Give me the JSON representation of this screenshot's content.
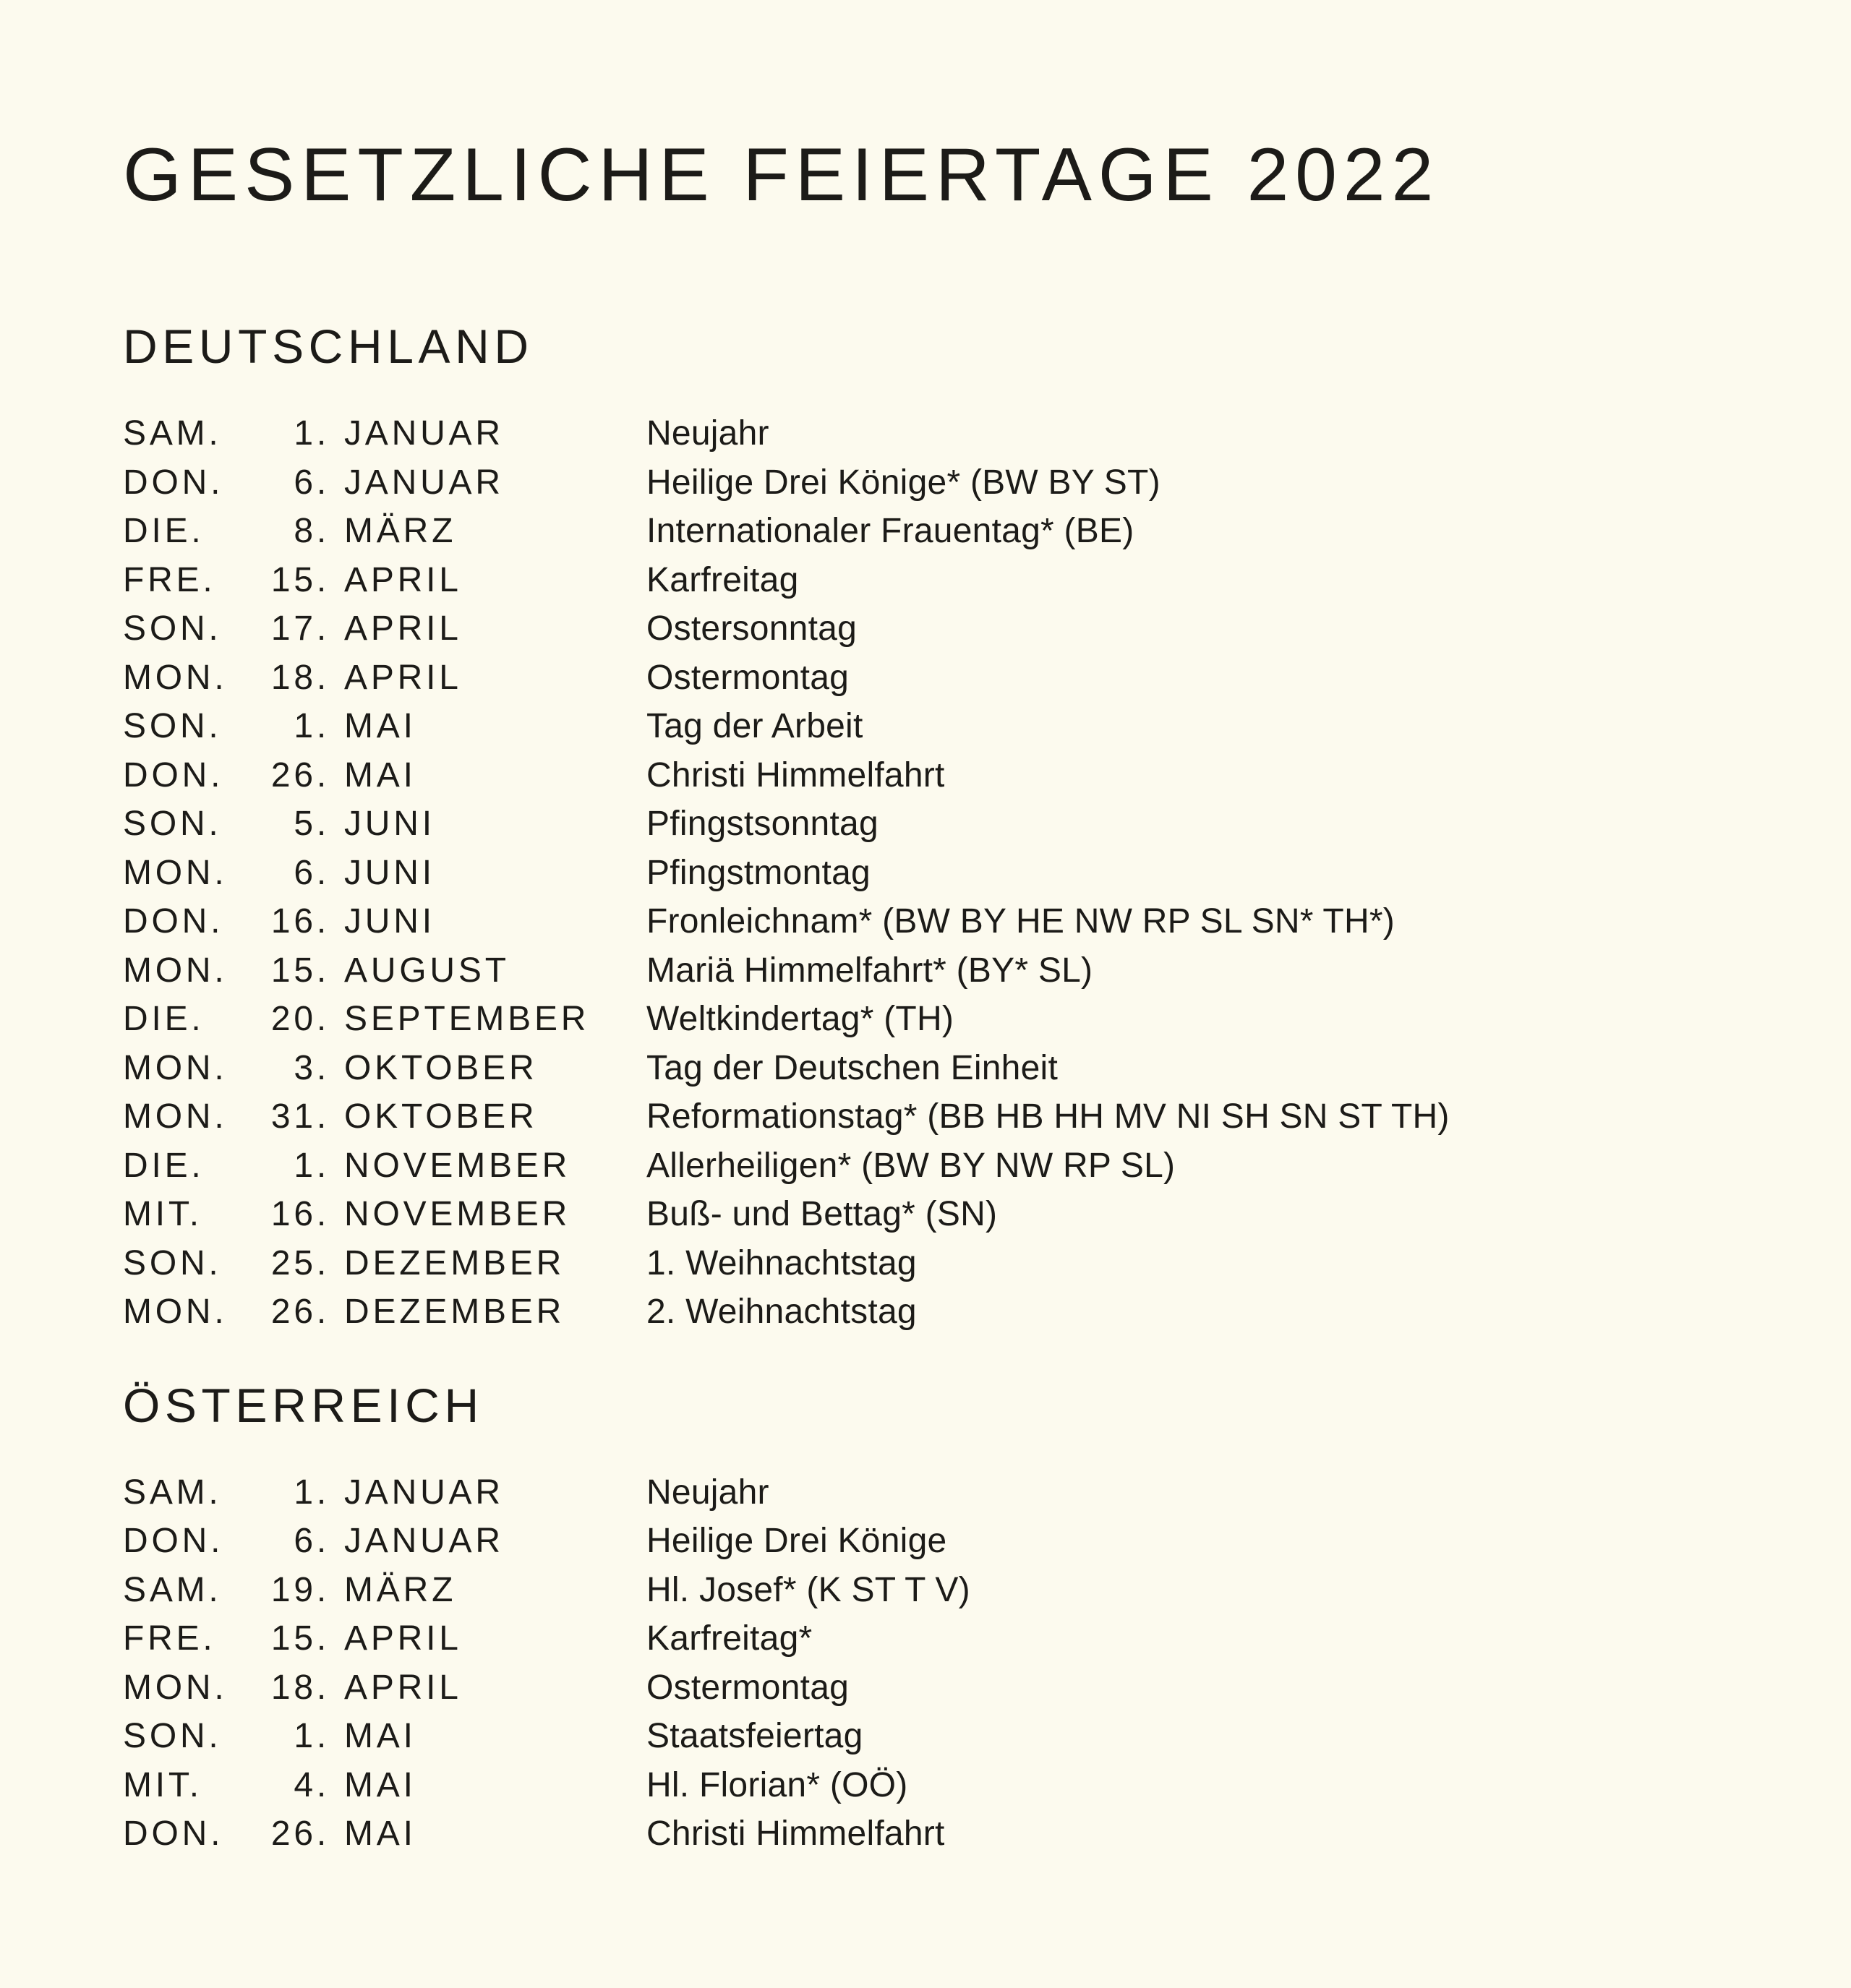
{
  "page": {
    "title": "GESETZLICHE FEIERTAGE 2022",
    "background_color": "#FCFAEE",
    "text_color": "#1C1B18"
  },
  "sections": [
    {
      "heading": "DEUTSCHLAND",
      "rows": [
        {
          "day": "SAM.",
          "date": "1.",
          "month": "JANUAR",
          "holiday": "Neujahr"
        },
        {
          "day": "DON.",
          "date": "6.",
          "month": "JANUAR",
          "holiday": "Heilige Drei Könige* (BW BY ST)"
        },
        {
          "day": "DIE.",
          "date": "8.",
          "month": "MÄRZ",
          "holiday": "Internationaler Frauentag* (BE)"
        },
        {
          "day": "FRE.",
          "date": "15.",
          "month": "APRIL",
          "holiday": "Karfreitag"
        },
        {
          "day": "SON.",
          "date": "17.",
          "month": "APRIL",
          "holiday": "Ostersonntag"
        },
        {
          "day": "MON.",
          "date": "18.",
          "month": "APRIL",
          "holiday": "Ostermontag"
        },
        {
          "day": "SON.",
          "date": "1.",
          "month": "MAI",
          "holiday": "Tag der Arbeit"
        },
        {
          "day": "DON.",
          "date": "26.",
          "month": "MAI",
          "holiday": "Christi Himmelfahrt"
        },
        {
          "day": "SON.",
          "date": "5.",
          "month": "JUNI",
          "holiday": "Pfingstsonntag"
        },
        {
          "day": "MON.",
          "date": "6.",
          "month": "JUNI",
          "holiday": "Pfingstmontag"
        },
        {
          "day": "DON.",
          "date": "16.",
          "month": "JUNI",
          "holiday": "Fronleichnam* (BW BY HE NW RP SL SN* TH*)"
        },
        {
          "day": "MON.",
          "date": "15.",
          "month": "AUGUST",
          "holiday": "Mariä Himmelfahrt* (BY* SL)"
        },
        {
          "day": "DIE.",
          "date": "20.",
          "month": "SEPTEMBER",
          "holiday": "Weltkindertag* (TH)"
        },
        {
          "day": "MON.",
          "date": "3.",
          "month": "OKTOBER",
          "holiday": "Tag der Deutschen Einheit"
        },
        {
          "day": "MON.",
          "date": "31.",
          "month": "OKTOBER",
          "holiday": "Reformationstag* (BB HB HH MV NI SH SN ST TH)"
        },
        {
          "day": "DIE.",
          "date": "1.",
          "month": "NOVEMBER",
          "holiday": "Allerheiligen* (BW BY NW RP SL)"
        },
        {
          "day": "MIT.",
          "date": "16.",
          "month": "NOVEMBER",
          "holiday": "Buß- und Bettag* (SN)"
        },
        {
          "day": "SON.",
          "date": "25.",
          "month": "DEZEMBER",
          "holiday": "1. Weihnachtstag"
        },
        {
          "day": "MON.",
          "date": "26.",
          "month": "DEZEMBER",
          "holiday": "2. Weihnachtstag"
        }
      ]
    },
    {
      "heading": "ÖSTERREICH",
      "rows": [
        {
          "day": "SAM.",
          "date": "1.",
          "month": "JANUAR",
          "holiday": "Neujahr"
        },
        {
          "day": "DON.",
          "date": "6.",
          "month": "JANUAR",
          "holiday": "Heilige Drei Könige"
        },
        {
          "day": "SAM.",
          "date": "19.",
          "month": "MÄRZ",
          "holiday": "Hl. Josef* (K ST T V)"
        },
        {
          "day": "FRE.",
          "date": "15.",
          "month": "APRIL",
          "holiday": "Karfreitag*"
        },
        {
          "day": "MON.",
          "date": "18.",
          "month": "APRIL",
          "holiday": "Ostermontag"
        },
        {
          "day": "SON.",
          "date": "1.",
          "month": "MAI",
          "holiday": "Staatsfeiertag"
        },
        {
          "day": "MIT.",
          "date": "4.",
          "month": "MAI",
          "holiday": "Hl. Florian* (OÖ)"
        },
        {
          "day": "DON.",
          "date": "26.",
          "month": "MAI",
          "holiday": "Christi Himmelfahrt"
        }
      ]
    }
  ]
}
